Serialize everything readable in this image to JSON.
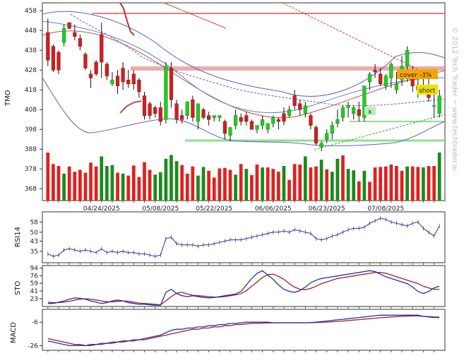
{
  "chart_data": {
    "type": "candlestick",
    "ticker": "TMO",
    "watermark": "© 2012 Tech Trader ~ www.techtrader.ai",
    "x_tick_labels": [
      "04/24/2025",
      "05/08/2025",
      "05/22/2025",
      "06/06/2025",
      "06/23/2025",
      "07/08/2025"
    ],
    "price_axis": {
      "ticks": [
        458,
        448,
        438,
        428,
        418,
        408,
        398,
        388,
        378,
        368
      ],
      "ylim": [
        362,
        462
      ]
    },
    "annotations": [
      {
        "text": "cover -3%",
        "color": "#f5a500"
      },
      {
        "text": "short",
        "color": "#f0e000"
      },
      {
        "text": "x",
        "color": "#222"
      }
    ],
    "candles": [
      [
        447,
        454,
        433,
        430
      ],
      [
        440,
        441,
        428,
        427
      ],
      [
        437,
        438,
        428,
        426
      ],
      [
        442,
        451,
        449,
        440
      ],
      [
        452,
        452,
        449,
        449
      ],
      [
        447,
        451,
        445,
        443
      ],
      [
        444,
        446,
        440,
        438
      ],
      [
        436,
        437,
        429,
        428
      ],
      [
        426,
        428,
        424,
        419
      ],
      [
        432,
        433,
        426,
        425
      ],
      [
        446,
        452,
        432,
        424
      ],
      [
        431,
        432,
        425,
        423
      ],
      [
        421,
        427,
        423,
        420
      ],
      [
        425,
        428,
        420,
        416
      ],
      [
        429,
        432,
        422,
        418
      ],
      [
        423,
        428,
        421,
        419
      ],
      [
        426,
        428,
        421,
        418
      ],
      [
        423,
        424,
        417,
        414
      ],
      [
        415,
        417,
        405,
        403
      ],
      [
        411,
        412,
        405,
        403
      ],
      [
        409,
        410,
        406,
        404
      ],
      [
        409,
        412,
        402,
        400
      ],
      [
        403,
        432,
        430,
        401
      ],
      [
        429,
        432,
        413,
        409
      ],
      [
        411,
        413,
        403,
        401
      ],
      [
        405,
        408,
        403,
        401
      ],
      [
        405,
        412,
        412,
        403
      ],
      [
        413,
        415,
        404,
        402
      ],
      [
        402,
        411,
        411,
        398
      ],
      [
        408,
        409,
        404,
        403
      ],
      [
        405,
        407,
        403,
        400
      ],
      [
        404,
        405,
        405,
        402
      ],
      [
        404,
        405,
        405,
        402
      ],
      [
        402,
        403,
        396,
        393
      ],
      [
        395,
        399,
        399,
        392
      ],
      [
        400,
        408,
        405,
        398
      ],
      [
        404,
        406,
        402,
        400
      ],
      [
        405,
        407,
        402,
        400
      ],
      [
        402,
        403,
        398,
        398
      ],
      [
        398,
        400,
        400,
        396
      ],
      [
        400,
        405,
        403,
        398
      ],
      [
        398,
        401,
        401,
        396
      ],
      [
        401,
        405,
        404,
        399
      ],
      [
        403,
        404,
        402,
        398
      ],
      [
        406,
        409,
        402,
        400
      ],
      [
        405,
        410,
        408,
        404
      ],
      [
        415,
        418,
        410,
        408
      ],
      [
        411,
        413,
        408,
        405
      ],
      [
        406,
        412,
        410,
        404
      ],
      [
        405,
        406,
        400,
        398
      ],
      [
        399,
        400,
        391,
        390
      ],
      [
        389,
        392,
        391,
        387
      ],
      [
        393,
        398,
        396,
        391
      ],
      [
        396,
        402,
        400,
        393
      ],
      [
        401,
        408,
        403,
        399
      ],
      [
        404,
        410,
        409,
        402
      ],
      [
        409,
        412,
        410,
        404
      ],
      [
        406,
        410,
        409,
        403
      ],
      [
        408,
        412,
        405,
        402
      ],
      [
        404,
        420,
        420,
        402
      ],
      [
        422,
        427,
        426,
        418
      ],
      [
        428,
        431,
        427,
        424
      ],
      [
        426,
        429,
        421,
        420
      ],
      [
        420,
        426,
        425,
        418
      ],
      [
        424,
        432,
        431,
        419
      ],
      [
        418,
        427,
        421,
        416
      ],
      [
        423,
        435,
        430,
        420
      ],
      [
        430,
        440,
        438,
        422
      ],
      [
        426,
        430,
        420,
        417
      ],
      [
        420,
        425,
        418,
        414
      ],
      [
        419,
        428,
        420,
        416
      ],
      [
        418,
        426,
        414,
        412
      ],
      [
        410,
        418,
        410,
        404
      ],
      [
        406,
        418,
        415,
        404
      ]
    ],
    "volume": [
      {
        "v": 1.0,
        "c": "red"
      },
      {
        "v": 0.76,
        "c": "red"
      },
      {
        "v": 0.72,
        "c": "red"
      },
      {
        "v": 0.56,
        "c": "green"
      },
      {
        "v": 0.71,
        "c": "red"
      },
      {
        "v": 0.6,
        "c": "red"
      },
      {
        "v": 0.64,
        "c": "red"
      },
      {
        "v": 0.58,
        "c": "red"
      },
      {
        "v": 0.79,
        "c": "red"
      },
      {
        "v": 0.71,
        "c": "red"
      },
      {
        "v": 0.92,
        "c": "green"
      },
      {
        "v": 0.72,
        "c": "green"
      },
      {
        "v": 0.74,
        "c": "green"
      },
      {
        "v": 0.58,
        "c": "red"
      },
      {
        "v": 0.56,
        "c": "green"
      },
      {
        "v": 0.52,
        "c": "red"
      },
      {
        "v": 0.73,
        "c": "red"
      },
      {
        "v": 0.49,
        "c": "red"
      },
      {
        "v": 0.8,
        "c": "red"
      },
      {
        "v": 0.64,
        "c": "red"
      },
      {
        "v": 0.54,
        "c": "green"
      },
      {
        "v": 0.59,
        "c": "green"
      },
      {
        "v": 0.87,
        "c": "green"
      },
      {
        "v": 0.95,
        "c": "green"
      },
      {
        "v": 0.82,
        "c": "green"
      },
      {
        "v": 0.74,
        "c": "red"
      },
      {
        "v": 0.56,
        "c": "red"
      },
      {
        "v": 0.71,
        "c": "red"
      },
      {
        "v": 0.52,
        "c": "green"
      },
      {
        "v": 0.7,
        "c": "green"
      },
      {
        "v": 0.62,
        "c": "red"
      },
      {
        "v": 0.48,
        "c": "red"
      },
      {
        "v": 0.67,
        "c": "red"
      },
      {
        "v": 0.68,
        "c": "red"
      },
      {
        "v": 0.64,
        "c": "red"
      },
      {
        "v": 0.54,
        "c": "green"
      },
      {
        "v": 0.76,
        "c": "red"
      },
      {
        "v": 0.66,
        "c": "green"
      },
      {
        "v": 0.53,
        "c": "red"
      },
      {
        "v": 0.75,
        "c": "red"
      },
      {
        "v": 0.69,
        "c": "green"
      },
      {
        "v": 0.69,
        "c": "red"
      },
      {
        "v": 0.66,
        "c": "red"
      },
      {
        "v": 0.6,
        "c": "red"
      },
      {
        "v": 0.72,
        "c": "green"
      },
      {
        "v": 0.43,
        "c": "red"
      },
      {
        "v": 0.76,
        "c": "red"
      },
      {
        "v": 0.75,
        "c": "red"
      },
      {
        "v": 0.92,
        "c": "green"
      },
      {
        "v": 0.69,
        "c": "red"
      },
      {
        "v": 0.71,
        "c": "red"
      },
      {
        "v": 0.85,
        "c": "green"
      },
      {
        "v": 0.65,
        "c": "red"
      },
      {
        "v": 0.6,
        "c": "green"
      },
      {
        "v": 0.87,
        "c": "green"
      },
      {
        "v": 0.94,
        "c": "red"
      },
      {
        "v": 0.66,
        "c": "green"
      },
      {
        "v": 0.63,
        "c": "green"
      },
      {
        "v": 0.4,
        "c": "red"
      },
      {
        "v": 0.62,
        "c": "green"
      },
      {
        "v": 0.39,
        "c": "red"
      },
      {
        "v": 0.69,
        "c": "red"
      },
      {
        "v": 0.7,
        "c": "red"
      },
      {
        "v": 0.71,
        "c": "red"
      },
      {
        "v": 0.75,
        "c": "red"
      },
      {
        "v": 0.72,
        "c": "red"
      },
      {
        "v": 0.62,
        "c": "red"
      },
      {
        "v": 0.71,
        "c": "green"
      },
      {
        "v": 0.71,
        "c": "red"
      },
      {
        "v": 0.7,
        "c": "red"
      },
      {
        "v": 0.69,
        "c": "green"
      },
      {
        "v": 0.72,
        "c": "red"
      },
      {
        "v": 0.72,
        "c": "red"
      },
      {
        "v": 1.0,
        "c": "green"
      }
    ],
    "rsi": {
      "label": "RSI14",
      "ticks": [
        58,
        50,
        43,
        35
      ],
      "ylim": [
        26,
        66
      ],
      "values": [
        33,
        31,
        32,
        36,
        37,
        36,
        35,
        36,
        35,
        34,
        37,
        34,
        35,
        34,
        35,
        34,
        34,
        33,
        33,
        32,
        31,
        32,
        45,
        46,
        41,
        40,
        40,
        40,
        39,
        40,
        40,
        41,
        42,
        43,
        44,
        44,
        44,
        45,
        46,
        47,
        48,
        49,
        50,
        50,
        51,
        50,
        52,
        51,
        50,
        49,
        45,
        44,
        45,
        47,
        48,
        50,
        52,
        53,
        53,
        54,
        57,
        59,
        61,
        60,
        58,
        57,
        56,
        55,
        57,
        58,
        53,
        50,
        47,
        55
      ]
    },
    "sto": {
      "label": "STO",
      "ticks": [
        94,
        76,
        59,
        41,
        23
      ],
      "ylim": [
        5,
        100
      ],
      "k": [
        12,
        12,
        15,
        18,
        22,
        25,
        24,
        22,
        18,
        15,
        12,
        14,
        18,
        20,
        18,
        14,
        12,
        10,
        10,
        9,
        8,
        8,
        38,
        45,
        35,
        30,
        28,
        30,
        28,
        26,
        25,
        26,
        28,
        30,
        32,
        34,
        40,
        55,
        70,
        82,
        88,
        78,
        68,
        55,
        45,
        40,
        38,
        42,
        50,
        60,
        66,
        70,
        72,
        74,
        76,
        78,
        80,
        82,
        84,
        86,
        88,
        86,
        80,
        74,
        70,
        66,
        62,
        58,
        50,
        40,
        35,
        40,
        48,
        52
      ],
      "d": [
        15,
        14,
        14,
        15,
        17,
        20,
        22,
        23,
        22,
        20,
        18,
        16,
        16,
        17,
        18,
        17,
        15,
        13,
        12,
        11,
        10,
        9,
        18,
        28,
        36,
        38,
        34,
        31,
        30,
        29,
        28,
        27,
        27,
        28,
        30,
        32,
        35,
        42,
        52,
        62,
        72,
        79,
        80,
        75,
        68,
        58,
        50,
        45,
        44,
        47,
        52,
        58,
        62,
        66,
        70,
        72,
        74,
        76,
        78,
        80,
        82,
        84,
        84,
        82,
        78,
        74,
        70,
        66,
        62,
        58,
        52,
        48,
        45,
        45
      ]
    },
    "macd": {
      "label": "MACD",
      "ticks": [
        -6,
        -26
      ],
      "ylim": [
        -30,
        5
      ],
      "macd": [
        -22,
        -23,
        -24,
        -25,
        -26,
        -26,
        -26,
        -26,
        -25,
        -25,
        -24,
        -24,
        -23,
        -23,
        -22,
        -22,
        -21,
        -21,
        -20,
        -19,
        -18,
        -17,
        -15,
        -13,
        -12,
        -12,
        -11,
        -11,
        -10,
        -10,
        -9,
        -9,
        -8,
        -8,
        -7,
        -7,
        -6.5,
        -6,
        -6,
        -6,
        -6,
        -6,
        -6.5,
        -6.5,
        -6.5,
        -6.5,
        -6.5,
        -6.5,
        -6.5,
        -6.2,
        -6,
        -5.5,
        -5,
        -4.5,
        -4,
        -3.5,
        -3,
        -2.5,
        -2,
        -1.5,
        -1,
        -0.5,
        0,
        0,
        0,
        0,
        0,
        0,
        0,
        0,
        -1,
        -1.5,
        -2,
        -2
      ],
      "signal": [
        -20,
        -21,
        -22,
        -23,
        -24,
        -25,
        -25,
        -26,
        -26,
        -25,
        -25,
        -24,
        -24,
        -23,
        -23,
        -22,
        -22,
        -21,
        -21,
        -20,
        -19,
        -18,
        -17,
        -16,
        -15,
        -14,
        -13,
        -12,
        -12,
        -11,
        -11,
        -10,
        -10,
        -9,
        -9,
        -8,
        -8,
        -7.5,
        -7,
        -7,
        -6.8,
        -6.6,
        -6.5,
        -6.4,
        -6.4,
        -6.4,
        -6.4,
        -6.4,
        -6.5,
        -6.4,
        -6.3,
        -6.1,
        -5.9,
        -5.6,
        -5.3,
        -5,
        -4.6,
        -4.2,
        -3.8,
        -3.4,
        -3,
        -2.6,
        -2.2,
        -1.8,
        -1.5,
        -1.2,
        -1,
        -0.8,
        -0.7,
        -0.7,
        -1,
        -1.2,
        -1.5,
        -1.7
      ]
    }
  }
}
